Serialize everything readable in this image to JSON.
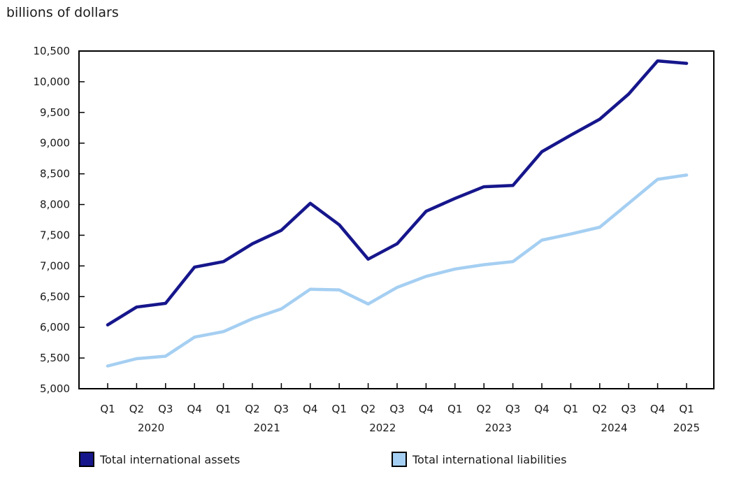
{
  "title": "billions of dollars",
  "chart_data": {
    "type": "line",
    "title": "billions of dollars",
    "ylabel": "billions of dollars",
    "xlabel": "",
    "grid": false,
    "legend_position": "bottom",
    "ylim": [
      5000,
      10500
    ],
    "ytick_step": 500,
    "x_quarters": [
      "Q1",
      "Q2",
      "Q3",
      "Q4",
      "Q1",
      "Q2",
      "Q3",
      "Q4",
      "Q1",
      "Q2",
      "Q3",
      "Q4",
      "Q1",
      "Q2",
      "Q3",
      "Q4",
      "Q1",
      "Q2",
      "Q3",
      "Q4",
      "Q1"
    ],
    "year_groups": [
      {
        "label": "2020",
        "count": 4
      },
      {
        "label": "2021",
        "count": 4
      },
      {
        "label": "2022",
        "count": 4
      },
      {
        "label": "2023",
        "count": 4
      },
      {
        "label": "2024",
        "count": 4
      },
      {
        "label": "2025",
        "count": 1
      }
    ],
    "series": [
      {
        "name": "Total international assets",
        "color": "#16168c",
        "values": [
          6040,
          6330,
          6390,
          6980,
          7070,
          7360,
          7580,
          8020,
          7670,
          7110,
          7360,
          7890,
          8100,
          8290,
          8310,
          8860,
          9130,
          9390,
          9800,
          10340,
          10300
        ]
      },
      {
        "name": "Total international liabilities",
        "color": "#a5cff2",
        "values": [
          5370,
          5490,
          5530,
          5840,
          5930,
          6140,
          6300,
          6620,
          6610,
          6380,
          6650,
          6830,
          6950,
          7020,
          7070,
          7420,
          7520,
          7630,
          8020,
          8410,
          8480
        ]
      }
    ]
  }
}
